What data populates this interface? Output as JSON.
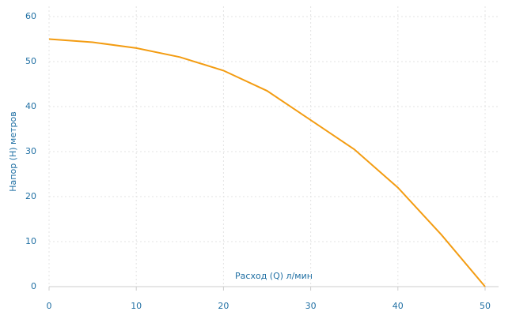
{
  "chart_data": {
    "type": "line",
    "x_label": "Расход (Q) л/мин",
    "y_label": "Напор (H) метров",
    "x": [
      0,
      5,
      10,
      15,
      20,
      25,
      30,
      35,
      40,
      45,
      50
    ],
    "values": [
      55,
      54.3,
      53,
      51,
      48,
      43.5,
      37,
      30.5,
      22,
      11.5,
      0
    ],
    "color": "#f39c12",
    "xlim": [
      0,
      50
    ],
    "xticks": [
      0,
      10,
      20,
      30,
      40,
      50
    ],
    "ylim": [
      0,
      60
    ],
    "yticks": [
      0,
      10,
      20,
      30,
      40,
      50,
      60
    ],
    "grid": true
  }
}
